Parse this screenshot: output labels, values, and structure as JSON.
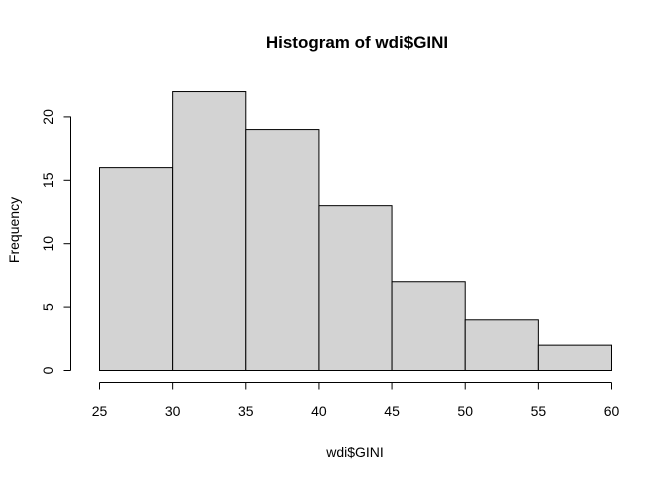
{
  "chart_data": {
    "type": "bar",
    "subtype": "histogram",
    "title": "Histogram of wdi$GINI",
    "xlabel": "wdi$GINI",
    "ylabel": "Frequency",
    "bins": [
      {
        "from": 25,
        "to": 30,
        "count": 16
      },
      {
        "from": 30,
        "to": 35,
        "count": 22
      },
      {
        "from": 35,
        "to": 40,
        "count": 19
      },
      {
        "from": 40,
        "to": 45,
        "count": 13
      },
      {
        "from": 45,
        "to": 50,
        "count": 7
      },
      {
        "from": 50,
        "to": 55,
        "count": 4
      },
      {
        "from": 55,
        "to": 60,
        "count": 2
      }
    ],
    "xlim": [
      25,
      60
    ],
    "ylim": [
      0,
      22
    ],
    "xticks": [
      "25",
      "30",
      "35",
      "40",
      "45",
      "50",
      "55",
      "60"
    ],
    "yticks": [
      "0",
      "5",
      "10",
      "15",
      "20"
    ],
    "bar_color": "#D3D3D3",
    "border_color": "#000000",
    "grid": false,
    "legend": "none"
  }
}
